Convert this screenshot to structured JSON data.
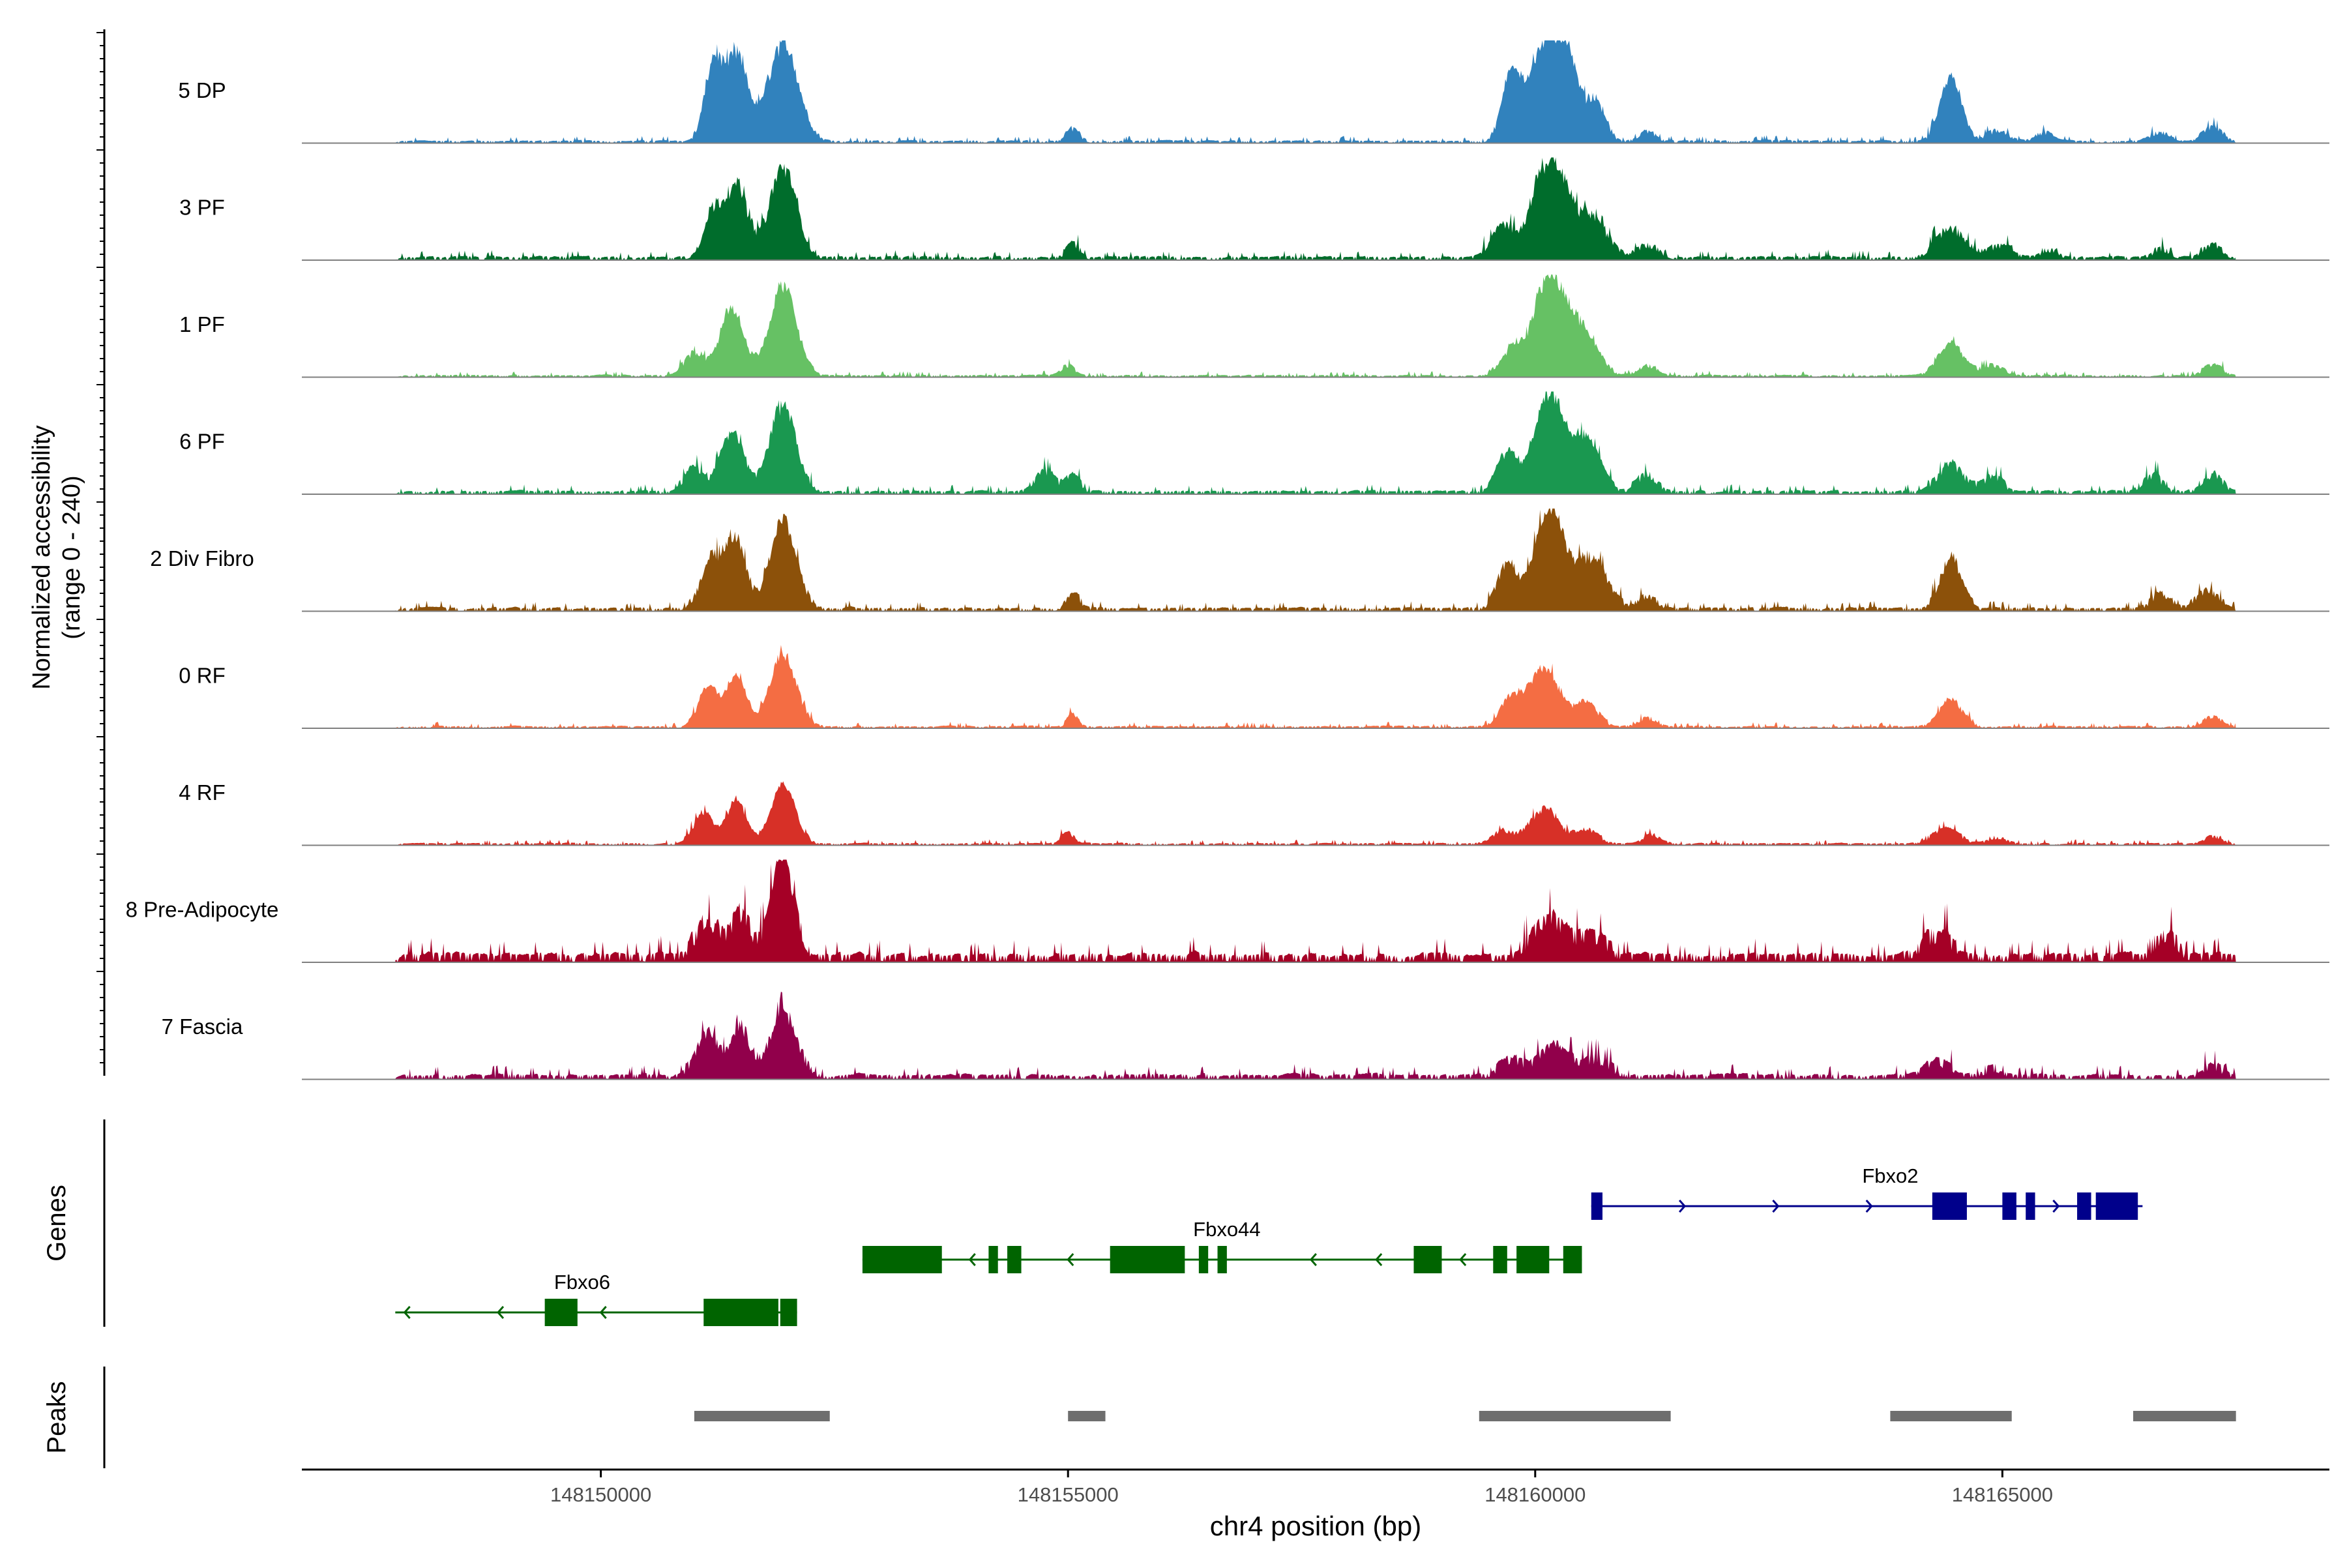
{
  "chart_data": {
    "type": "area",
    "title": "",
    "ylabel_line1": "Normalized accessibility",
    "ylabel_line2": "(range 0 - 240)",
    "xlabel": "chr4 position (bp)",
    "xlim": [
      148146800,
      148168500
    ],
    "ylim": [
      0,
      240
    ],
    "xticks": [
      148150000,
      148155000,
      148160000,
      148165000
    ],
    "xtick_labels": [
      "148150000",
      "148155000",
      "148160000",
      "148165000"
    ],
    "genes_label": "Genes",
    "peaks_label": "Peaks",
    "tracks": [
      {
        "name": "5 DP",
        "color": "#3182BD",
        "scale": 1.0,
        "noise": 0.035,
        "peaks": [
          [
            148151200,
            90,
            0.76
          ],
          [
            148151450,
            120,
            0.86
          ],
          [
            148151950,
            160,
            1.0
          ],
          [
            148155050,
            70,
            0.11
          ],
          [
            148159750,
            100,
            0.68
          ],
          [
            148160100,
            160,
            0.95
          ],
          [
            148160350,
            120,
            0.7
          ],
          [
            148160650,
            100,
            0.4
          ],
          [
            148161200,
            90,
            0.09
          ],
          [
            148164450,
            110,
            0.64
          ],
          [
            148164950,
            120,
            0.1
          ],
          [
            148165450,
            100,
            0.08
          ],
          [
            148166700,
            120,
            0.08
          ],
          [
            148167250,
            100,
            0.14
          ]
        ]
      },
      {
        "name": "3 PF",
        "color": "#006D2C",
        "scale": 1.0,
        "noise": 0.05,
        "peaks": [
          [
            148151200,
            100,
            0.42
          ],
          [
            148151450,
            120,
            0.72
          ],
          [
            148151950,
            140,
            0.9
          ],
          [
            148155050,
            70,
            0.12
          ],
          [
            148159650,
            120,
            0.28
          ],
          [
            148160150,
            180,
            1.0
          ],
          [
            148160600,
            160,
            0.38
          ],
          [
            148161200,
            120,
            0.12
          ],
          [
            148164450,
            150,
            0.28
          ],
          [
            148164950,
            140,
            0.1
          ],
          [
            148165500,
            100,
            0.07
          ],
          [
            148166700,
            100,
            0.07
          ],
          [
            148167250,
            100,
            0.12
          ]
        ]
      },
      {
        "name": "1 PF",
        "color": "#66C164",
        "scale": 1.0,
        "noise": 0.03,
        "peaks": [
          [
            148151000,
            100,
            0.22
          ],
          [
            148151400,
            130,
            0.68
          ],
          [
            148151950,
            140,
            0.91
          ],
          [
            148155000,
            70,
            0.1
          ],
          [
            148159750,
            120,
            0.25
          ],
          [
            148160150,
            160,
            1.0
          ],
          [
            148160500,
            160,
            0.45
          ],
          [
            148161200,
            100,
            0.1
          ],
          [
            148164450,
            130,
            0.32
          ],
          [
            148164900,
            120,
            0.1
          ],
          [
            148167250,
            100,
            0.1
          ]
        ]
      },
      {
        "name": "6 PF",
        "color": "#1A9850",
        "scale": 1.0,
        "noise": 0.05,
        "peaks": [
          [
            148151000,
            100,
            0.22
          ],
          [
            148151400,
            120,
            0.6
          ],
          [
            148151950,
            140,
            0.86
          ],
          [
            148154750,
            100,
            0.2
          ],
          [
            148155050,
            70,
            0.16
          ],
          [
            148159700,
            100,
            0.38
          ],
          [
            148160150,
            160,
            1.0
          ],
          [
            148160550,
            140,
            0.5
          ],
          [
            148161200,
            100,
            0.16
          ],
          [
            148164450,
            130,
            0.26
          ],
          [
            148164900,
            100,
            0.14
          ],
          [
            148166600,
            100,
            0.14
          ],
          [
            148167250,
            100,
            0.16
          ]
        ]
      },
      {
        "name": "2 Div Fibro",
        "color": "#8C510A",
        "scale": 1.0,
        "noise": 0.05,
        "peaks": [
          [
            148151200,
            120,
            0.5
          ],
          [
            148151450,
            100,
            0.7
          ],
          [
            148151950,
            140,
            0.88
          ],
          [
            148155050,
            70,
            0.14
          ],
          [
            148159700,
            100,
            0.46
          ],
          [
            148160150,
            160,
            1.0
          ],
          [
            148160600,
            160,
            0.5
          ],
          [
            148161200,
            100,
            0.12
          ],
          [
            148164450,
            110,
            0.52
          ],
          [
            148166700,
            100,
            0.14
          ],
          [
            148167200,
            120,
            0.17
          ]
        ]
      },
      {
        "name": "0 RF",
        "color": "#F46D43",
        "scale": 1.0,
        "noise": 0.03,
        "peaks": [
          [
            148151150,
            100,
            0.42
          ],
          [
            148151450,
            100,
            0.56
          ],
          [
            148151950,
            140,
            0.74
          ],
          [
            148155050,
            60,
            0.12
          ],
          [
            148159750,
            120,
            0.28
          ],
          [
            148160100,
            160,
            0.58
          ],
          [
            148160550,
            120,
            0.24
          ],
          [
            148161200,
            100,
            0.08
          ],
          [
            148164450,
            120,
            0.27
          ],
          [
            148167250,
            100,
            0.1
          ]
        ]
      },
      {
        "name": "4 RF",
        "color": "#D73027",
        "scale": 1.0,
        "noise": 0.03,
        "peaks": [
          [
            148151100,
            100,
            0.32
          ],
          [
            148151450,
            100,
            0.44
          ],
          [
            148151950,
            130,
            0.6
          ],
          [
            148155000,
            70,
            0.1
          ],
          [
            148159650,
            120,
            0.12
          ],
          [
            148160100,
            150,
            0.36
          ],
          [
            148160550,
            120,
            0.14
          ],
          [
            148161250,
            100,
            0.08
          ],
          [
            148164400,
            140,
            0.14
          ],
          [
            148164950,
            100,
            0.06
          ],
          [
            148167250,
            100,
            0.07
          ]
        ]
      },
      {
        "name": "8 Pre-Adipocyte",
        "color": "#A50026",
        "scale": 1.0,
        "noise": 0.12,
        "peaks": [
          [
            148151150,
            120,
            0.32
          ],
          [
            148151500,
            100,
            0.4
          ],
          [
            148151950,
            120,
            0.92
          ],
          [
            148160150,
            160,
            0.36
          ],
          [
            148160600,
            140,
            0.18
          ],
          [
            148164300,
            140,
            0.18
          ],
          [
            148166750,
            100,
            0.2
          ]
        ]
      },
      {
        "name": "7 Fascia",
        "color": "#91004B",
        "scale": 1.0,
        "noise": 0.07,
        "peaks": [
          [
            148151150,
            120,
            0.42
          ],
          [
            148151500,
            100,
            0.46
          ],
          [
            148151950,
            140,
            0.62
          ],
          [
            148159750,
            120,
            0.14
          ],
          [
            148160200,
            150,
            0.3
          ],
          [
            148160650,
            140,
            0.14
          ],
          [
            148164300,
            140,
            0.12
          ],
          [
            148164900,
            100,
            0.06
          ],
          [
            148167250,
            100,
            0.08
          ]
        ]
      }
    ],
    "genes": [
      {
        "name": "Fbxo2",
        "strand": "+",
        "color": "#00008B",
        "row": 0,
        "start": 148160600,
        "end": 148166500,
        "label_pos": 148163800,
        "exons": [
          [
            148160600,
            148160720
          ],
          [
            148164250,
            148164620
          ],
          [
            148165000,
            148165150
          ],
          [
            148165250,
            148165350
          ],
          [
            148165800,
            148165950
          ],
          [
            148166000,
            148166450
          ]
        ],
        "arrows": [
          148161600,
          148162600,
          148163600,
          148165600
        ]
      },
      {
        "name": "Fbxo44",
        "strand": "-",
        "color": "#006400",
        "row": 1,
        "start": 148152800,
        "end": 148160500,
        "label_pos": 148156700,
        "exons": [
          [
            148152800,
            148153650
          ],
          [
            148154150,
            148154250
          ],
          [
            148154350,
            148154500
          ],
          [
            148155450,
            148156250
          ],
          [
            148156400,
            148156500
          ],
          [
            148156600,
            148156700
          ],
          [
            148158700,
            148159000
          ],
          [
            148159550,
            148159700
          ],
          [
            148159800,
            148160150
          ],
          [
            148160300,
            148160500
          ]
        ],
        "arrows": [
          148153950,
          148155000,
          148157600,
          148158300,
          148159200
        ]
      },
      {
        "name": "Fbxo6",
        "strand": "-",
        "color": "#006400",
        "row": 2,
        "start": 148147800,
        "end": 148152100,
        "label_pos": 148149800,
        "exons": [
          [
            148149400,
            148149750
          ],
          [
            148151100,
            148151900
          ],
          [
            148151920,
            148152100
          ]
        ],
        "arrows": [
          148147900,
          148148900,
          148150000
        ]
      }
    ],
    "peaks": [
      [
        148151000,
        148152450
      ],
      [
        148155000,
        148155400
      ],
      [
        148159400,
        148161450
      ],
      [
        148163800,
        148165100
      ],
      [
        148166400,
        148167500
      ]
    ]
  }
}
